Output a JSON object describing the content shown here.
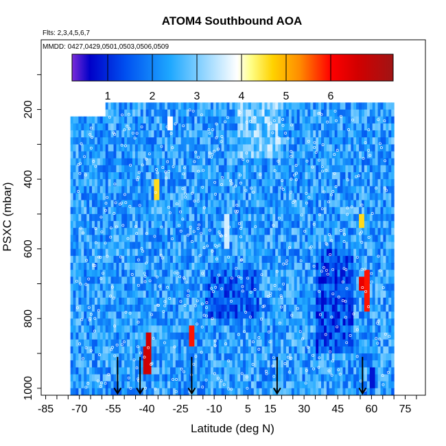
{
  "chart_data": {
    "type": "heatmap",
    "title": "ATOM4 Southbound AOA",
    "subtitle_flights": "Flts: 2,3,4,5,6,7",
    "subtitle_dates": "MMDD: 0427,0429,0501,0503,0506,0509",
    "xlabel": "Latitude (deg N)",
    "ylabel": "PSXC (mbar)",
    "xlim": [
      -87,
      84
    ],
    "ylim": [
      1020,
      0
    ],
    "x_ticks": [
      -85,
      -70,
      -55,
      -40,
      -25,
      -10,
      5,
      15,
      30,
      45,
      60,
      75
    ],
    "x_tick_labels": [
      "-85",
      "-70",
      "-55",
      "-40",
      "-25",
      "-10",
      "5",
      "15",
      "30",
      "45",
      "60",
      "75"
    ],
    "y_ticks": [
      200,
      400,
      600,
      800,
      1000
    ],
    "y_tick_labels": [
      "200",
      "400",
      "600",
      "800",
      "1000"
    ],
    "colorbar": {
      "range": [
        0.2,
        7.4
      ],
      "ticks": [
        1,
        2,
        3,
        4,
        5,
        6
      ],
      "tick_labels": [
        "1",
        "2",
        "3",
        "4",
        "5",
        "6"
      ],
      "colors": [
        "#7b2cd8",
        "#0000c8",
        "#0050f0",
        "#1ea8ff",
        "#8ad2ff",
        "#ffffff",
        "#ffff8a",
        "#ffd200",
        "#ff8c00",
        "#ff0000",
        "#d20000",
        "#a01414"
      ],
      "color_stops": [
        0.2,
        0.6,
        1.4,
        2.4,
        3.1,
        3.9,
        4.2,
        4.7,
        5.3,
        6.0,
        6.6,
        7.4
      ]
    },
    "marker_arrows_lat": [
      -53,
      -43,
      -20,
      18,
      56
    ],
    "background_mean_age_years": 2.3,
    "dominant_pattern": "mean age of air mostly 1.5–3 years; bands of 4–6.5 years near 60 N (650–800 mbar) and 40 S (850–960 mbar)",
    "series": [
      {
        "lat": -40,
        "p_top": 840,
        "p_bottom": 960,
        "value": 6.6
      },
      {
        "lat": -41,
        "p_top": 880,
        "p_bottom": 950,
        "value": 6.8
      },
      {
        "lat": -20,
        "p_top": 830,
        "p_bottom": 880,
        "value": 5.9
      },
      {
        "lat": 57,
        "p_top": 660,
        "p_bottom": 780,
        "value": 5.9
      },
      {
        "lat": 55,
        "p_top": 690,
        "p_bottom": 720,
        "value": 6.3
      },
      {
        "lat": -30,
        "p_top": 220,
        "p_bottom": 260,
        "value": 3.9
      },
      {
        "lat": -36,
        "p_top": 410,
        "p_bottom": 460,
        "value": 4.6
      },
      {
        "lat": 55,
        "p_top": 500,
        "p_bottom": 540,
        "value": 4.6
      },
      {
        "lat": -5,
        "p_top": 500,
        "p_bottom": 600,
        "value": 3.6
      },
      {
        "lat": 60,
        "p_top": 950,
        "p_bottom": 1000,
        "value": 0.8
      }
    ]
  }
}
